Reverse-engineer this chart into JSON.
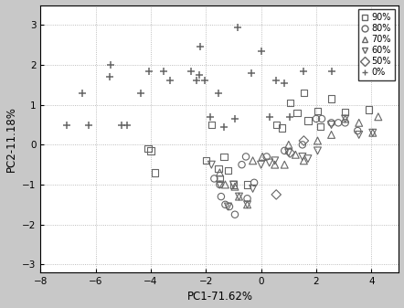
{
  "title": "",
  "xlabel": "PC1-71.62%",
  "ylabel": "PC2-11.18%",
  "xlim": [
    -8,
    5
  ],
  "ylim": [
    -3.2,
    3.5
  ],
  "xticks": [
    -8,
    -6,
    -4,
    -2,
    0,
    2,
    4
  ],
  "yticks": [
    -3,
    -2,
    -1,
    0,
    1,
    2,
    3
  ],
  "fig_facecolor": "#c8c8c8",
  "ax_facecolor": "#ffffff",
  "grid_color": "#aaaaaa",
  "marker_color": "#666666",
  "series": {
    "90%": {
      "marker": "s",
      "x": [
        -4.1,
        -4.0,
        -3.85,
        -2.0,
        -1.8,
        -1.55,
        -1.5,
        -1.35,
        -1.2,
        -1.0,
        -0.5,
        0.55,
        0.75,
        1.05,
        1.3,
        1.55,
        1.7,
        2.05,
        2.15,
        2.55,
        3.05,
        3.9
      ],
      "y": [
        -0.1,
        -0.15,
        -0.7,
        -0.4,
        0.5,
        -0.6,
        -0.85,
        -0.3,
        -0.65,
        -1.0,
        -1.0,
        0.5,
        0.42,
        1.05,
        0.8,
        1.3,
        0.6,
        0.85,
        0.45,
        1.15,
        0.82,
        0.88
      ]
    },
    "80%": {
      "marker": "o",
      "x": [
        -1.7,
        -1.5,
        -1.45,
        -1.3,
        -1.15,
        -0.95,
        -0.7,
        -0.55,
        -0.5,
        -0.25,
        0.2,
        0.85,
        1.5,
        2.0,
        2.2,
        2.55,
        2.8,
        3.05,
        3.5
      ],
      "y": [
        -0.85,
        -1.0,
        -1.3,
        -1.5,
        -1.55,
        -1.75,
        -0.5,
        -0.3,
        -1.35,
        -0.95,
        -0.3,
        -0.15,
        0.0,
        0.65,
        0.65,
        0.55,
        0.55,
        0.55,
        0.35
      ]
    },
    "70%": {
      "marker": "^",
      "x": [
        -1.5,
        -1.3,
        -0.95,
        -0.8,
        -0.5,
        -0.3,
        0.05,
        0.5,
        0.85,
        1.0,
        1.25,
        1.55,
        2.05,
        2.55,
        3.05,
        3.55,
        4.05,
        4.25
      ],
      "y": [
        -0.7,
        -1.0,
        -1.05,
        -1.3,
        -1.5,
        -0.4,
        -0.3,
        -0.5,
        -0.5,
        0.0,
        -0.25,
        -0.4,
        0.1,
        0.25,
        0.65,
        0.55,
        0.3,
        0.7
      ]
    },
    "60%": {
      "marker": "v",
      "x": [
        -1.8,
        -1.5,
        -1.2,
        -1.0,
        -0.8,
        -0.5,
        -0.3,
        0.0,
        0.3,
        0.5,
        1.0,
        1.5,
        1.7,
        2.05,
        2.55,
        3.05,
        3.55,
        4.05
      ],
      "y": [
        -0.5,
        -1.0,
        -1.55,
        -1.0,
        -1.3,
        -1.5,
        -1.1,
        -0.5,
        -0.45,
        -0.4,
        -0.2,
        -0.3,
        -0.35,
        -0.15,
        0.5,
        0.65,
        0.25,
        0.3
      ]
    },
    "50%": {
      "marker": "D",
      "x": [
        0.55,
        1.05,
        1.55
      ],
      "y": [
        -1.25,
        -0.2,
        0.1
      ]
    },
    "0%": {
      "marker": "+",
      "x": [
        -7.05,
        -6.5,
        -6.25,
        -5.5,
        -5.45,
        -5.05,
        -4.85,
        -4.35,
        -4.05,
        -3.55,
        -3.3,
        -2.55,
        -2.35,
        -2.25,
        -2.2,
        -2.05,
        -1.85,
        -1.55,
        -1.35,
        -0.95,
        -0.85,
        -0.35,
        0.0,
        0.3,
        0.55,
        0.85,
        1.05,
        1.55,
        2.55
      ],
      "y": [
        0.5,
        1.3,
        0.5,
        1.7,
        2.0,
        0.5,
        0.5,
        1.3,
        1.85,
        1.85,
        1.6,
        1.85,
        1.6,
        1.75,
        2.45,
        1.6,
        0.7,
        1.3,
        0.45,
        0.65,
        2.95,
        1.8,
        2.35,
        0.7,
        1.6,
        1.55,
        0.7,
        1.85,
        1.85
      ]
    }
  }
}
